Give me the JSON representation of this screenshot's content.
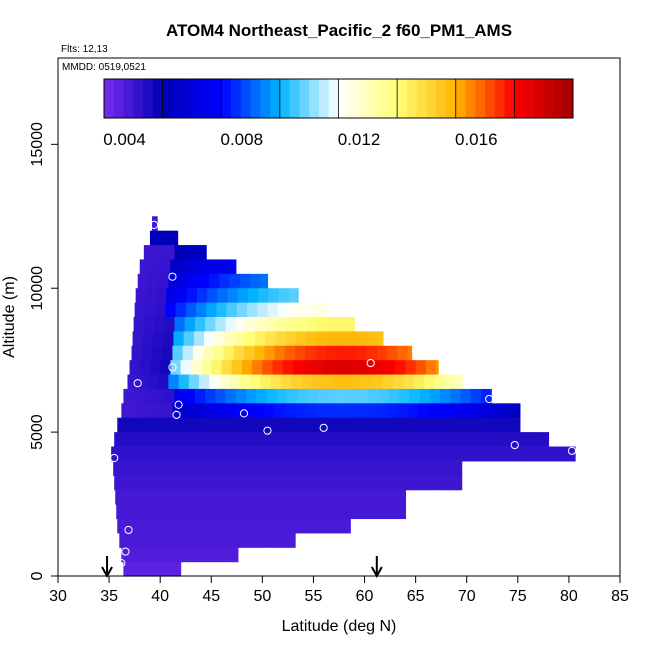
{
  "chart_data": {
    "type": "heatmap",
    "title": "ATOM4 Northeast_Pacific_2 f60_PM1_AMS",
    "flights_label": "Flts: 12,13",
    "dates_label": "MMDD: 0519,0521",
    "xlabel": "Latitude (deg N)",
    "ylabel": "Altitude (m)",
    "xlim": [
      30,
      85
    ],
    "ylim": [
      0,
      18000
    ],
    "x_ticks": [
      "30",
      "35",
      "40",
      "45",
      "50",
      "55",
      "60",
      "65",
      "70",
      "75",
      "80",
      "85"
    ],
    "y_ticks": [
      "0",
      "5000",
      "10000",
      "15000"
    ],
    "colorbar": {
      "range": [
        0.0033,
        0.0193
      ],
      "tick_labels": [
        "0.004",
        "0.008",
        "0.012",
        "0.016"
      ],
      "tick_values": [
        0.004,
        0.008,
        0.012,
        0.016
      ],
      "colors": [
        "#7b2cf0",
        "#0000b4",
        "#0000ff",
        "#00b4ff",
        "#ffffff",
        "#ffff78",
        "#ffb400",
        "#ff0000",
        "#a00000"
      ]
    },
    "altitude_bands": [
      {
        "alt": [
          12000,
          12500
        ],
        "lat": [
          39.2,
          39.7
        ],
        "value": 0.0042
      },
      {
        "alt": [
          11500,
          12000
        ],
        "lat": [
          39.0,
          41.7
        ],
        "value": 0.0055
      },
      {
        "alt": [
          11000,
          11500
        ],
        "lat": [
          38.4,
          44.5
        ],
        "value": 0.0068
      },
      {
        "alt": [
          10500,
          11000
        ],
        "lat": [
          38.0,
          47.4
        ],
        "value": 0.008
      },
      {
        "alt": [
          10000,
          10500
        ],
        "lat": [
          37.8,
          50.5
        ],
        "value": 0.0092
      },
      {
        "alt": [
          9500,
          10000
        ],
        "lat": [
          37.6,
          53.5
        ],
        "value": 0.0103
      },
      {
        "alt": [
          9000,
          9500
        ],
        "lat": [
          37.5,
          56.3
        ],
        "value": 0.0118
      },
      {
        "alt": [
          8500,
          9000
        ],
        "lat": [
          37.4,
          59.0
        ],
        "value": 0.0135
      },
      {
        "alt": [
          8000,
          8500
        ],
        "lat": [
          37.3,
          61.8
        ],
        "value": 0.0152
      },
      {
        "alt": [
          7500,
          8000
        ],
        "lat": [
          37.2,
          64.6
        ],
        "value": 0.017
      },
      {
        "alt": [
          7000,
          7500
        ],
        "lat": [
          37.0,
          67.2
        ],
        "value": 0.018
      },
      {
        "alt": [
          6500,
          7000
        ],
        "lat": [
          36.8,
          69.6
        ],
        "value": 0.015
      },
      {
        "alt": [
          6000,
          6500
        ],
        "lat": [
          36.4,
          72.4
        ],
        "value": 0.01
      },
      {
        "alt": [
          5500,
          6000
        ],
        "lat": [
          36.2,
          75.2
        ],
        "value": 0.0078
      },
      {
        "alt": [
          5000,
          5500
        ],
        "lat": [
          35.8,
          75.2
        ],
        "value": 0.005
      },
      {
        "alt": [
          4500,
          5000
        ],
        "lat": [
          35.5,
          78.0
        ],
        "value": 0.0047
      },
      {
        "alt": [
          4000,
          4500
        ],
        "lat": [
          35.2,
          80.6
        ],
        "value": 0.0045
      },
      {
        "alt": [
          3500,
          4000
        ],
        "lat": [
          35.4,
          69.5
        ],
        "value": 0.0044
      },
      {
        "alt": [
          3000,
          3500
        ],
        "lat": [
          35.5,
          69.5
        ],
        "value": 0.0043
      },
      {
        "alt": [
          2500,
          3000
        ],
        "lat": [
          35.6,
          64.0
        ],
        "value": 0.0042
      },
      {
        "alt": [
          2000,
          2500
        ],
        "lat": [
          35.7,
          64.0
        ],
        "value": 0.0042
      },
      {
        "alt": [
          1500,
          2000
        ],
        "lat": [
          35.8,
          58.6
        ],
        "value": 0.0041
      },
      {
        "alt": [
          1000,
          1500
        ],
        "lat": [
          36.0,
          53.2
        ],
        "value": 0.0041
      },
      {
        "alt": [
          500,
          1000
        ],
        "lat": [
          36.2,
          47.6
        ],
        "value": 0.004
      },
      {
        "alt": [
          0,
          500
        ],
        "lat": [
          36.4,
          42.0
        ],
        "value": 0.0038
      }
    ],
    "sample_points": [
      {
        "lat": 39.4,
        "alt": 12200
      },
      {
        "lat": 41.2,
        "alt": 10400
      },
      {
        "lat": 41.2,
        "alt": 7250
      },
      {
        "lat": 37.8,
        "alt": 6700
      },
      {
        "lat": 41.8,
        "alt": 5950
      },
      {
        "lat": 41.6,
        "alt": 5600
      },
      {
        "lat": 48.2,
        "alt": 5650
      },
      {
        "lat": 50.5,
        "alt": 5050
      },
      {
        "lat": 56.0,
        "alt": 5150
      },
      {
        "lat": 60.6,
        "alt": 7400
      },
      {
        "lat": 72.2,
        "alt": 6150
      },
      {
        "lat": 74.7,
        "alt": 4550
      },
      {
        "lat": 78.0,
        "alt": 5150
      },
      {
        "lat": 80.3,
        "alt": 4350
      },
      {
        "lat": 35.5,
        "alt": 4100
      },
      {
        "lat": 36.9,
        "alt": 1600
      },
      {
        "lat": 36.6,
        "alt": 850
      },
      {
        "lat": 36.2,
        "alt": 450
      }
    ],
    "arrows_lat": [
      34.8,
      61.2
    ]
  }
}
